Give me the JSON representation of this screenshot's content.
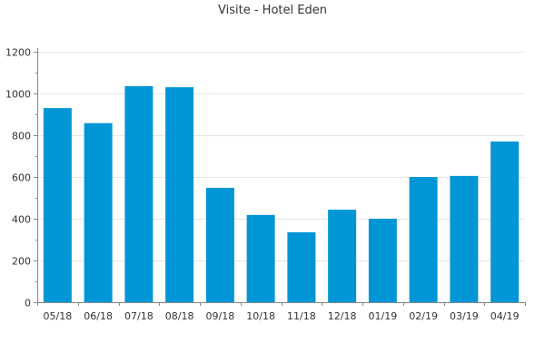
{
  "chart_data": {
    "type": "bar",
    "title": "Visite - Hotel Eden",
    "xlabel": "",
    "ylabel": "",
    "categories": [
      "05/18",
      "06/18",
      "07/18",
      "08/18",
      "09/18",
      "10/18",
      "11/18",
      "12/18",
      "01/19",
      "02/19",
      "03/19",
      "04/19"
    ],
    "values": [
      930,
      858,
      1035,
      1030,
      548,
      418,
      335,
      443,
      400,
      600,
      605,
      770
    ],
    "ylim": [
      0,
      1200
    ],
    "yticks": [
      0,
      200,
      400,
      600,
      800,
      1000,
      1200
    ],
    "grid": true,
    "legend": "none",
    "colors": {
      "bar": "#0096d6",
      "grid": "#e6e6e6",
      "axis": "#888888"
    }
  }
}
